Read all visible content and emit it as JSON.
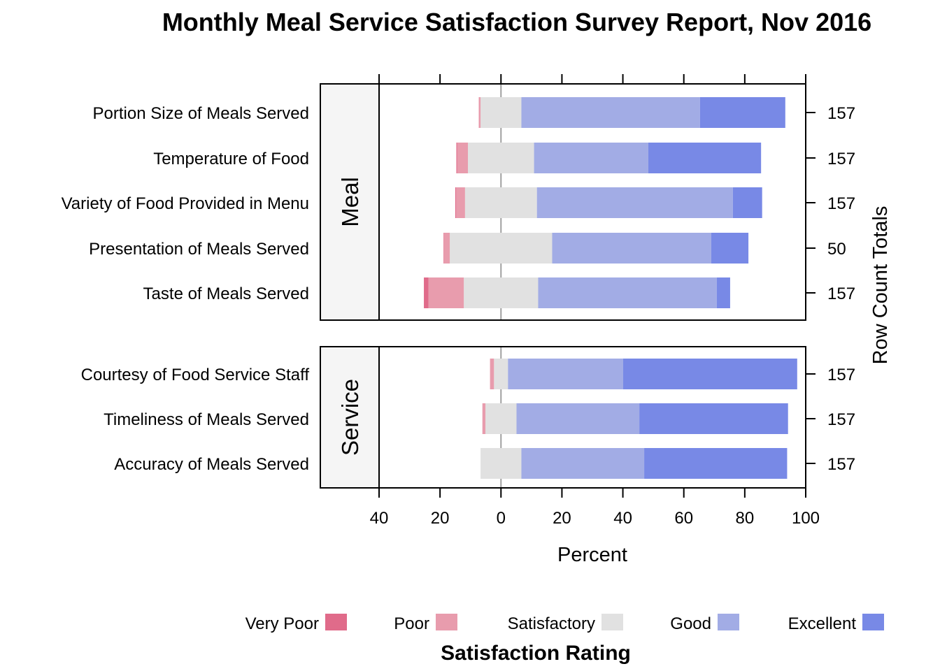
{
  "chart_data": {
    "type": "bar",
    "subtype": "diverging stacked bar (Likert)",
    "title": "Monthly Meal Service Satisfaction Survey Report, Nov 2016",
    "xlabel": "Percent",
    "right_axis_label": "Row Count Totals",
    "xlim": [
      -40,
      100
    ],
    "x_ticks": [
      -40,
      -20,
      0,
      20,
      40,
      60,
      80,
      100
    ],
    "x_tick_labels": [
      "40",
      "20",
      "0",
      "20",
      "40",
      "60",
      "80",
      "100"
    ],
    "legend_title": "Satisfaction Rating",
    "legend_position": "bottom",
    "levels": [
      "Very Poor",
      "Poor",
      "Satisfactory",
      "Good",
      "Excellent"
    ],
    "colors": {
      "Very Poor": "#E06B8A",
      "Poor": "#E89CAD",
      "Satisfactory": "#E1E1E1",
      "Good": "#A2ACE5",
      "Excellent": "#7889E6"
    },
    "panels": [
      {
        "name": "Meal",
        "rows": [
          {
            "label": "Portion Size of Meals Served",
            "total": "157",
            "values": [
              0.0,
              0.6,
              13.4,
              58.6,
              28.0
            ]
          },
          {
            "label": "Temperature of Food",
            "total": "157",
            "values": [
              0.3,
              3.5,
              21.7,
              37.5,
              37.0
            ]
          },
          {
            "label": "Variety of Food Provided in Menu",
            "total": "157",
            "values": [
              0.3,
              2.9,
              23.6,
              64.3,
              9.6
            ]
          },
          {
            "label": "Presentation of Meals Served",
            "total": "50",
            "values": [
              0.1,
              2.0,
              33.6,
              52.2,
              12.2
            ]
          },
          {
            "label": "Taste of Meals Served",
            "total": "157",
            "values": [
              1.5,
              11.6,
              24.4,
              58.6,
              4.4
            ]
          }
        ]
      },
      {
        "name": "Service",
        "rows": [
          {
            "label": "Courtesy of Food Service Staff",
            "total": "157",
            "values": [
              0.0,
              1.3,
              4.6,
              37.8,
              57.1
            ]
          },
          {
            "label": "Timeliness of Meals Served",
            "total": "157",
            "values": [
              0.0,
              1.0,
              10.2,
              40.3,
              48.8
            ]
          },
          {
            "label": "Accuracy of Meals Served",
            "total": "157",
            "values": [
              0.0,
              0.0,
              13.4,
              40.3,
              46.9
            ]
          }
        ]
      }
    ]
  }
}
